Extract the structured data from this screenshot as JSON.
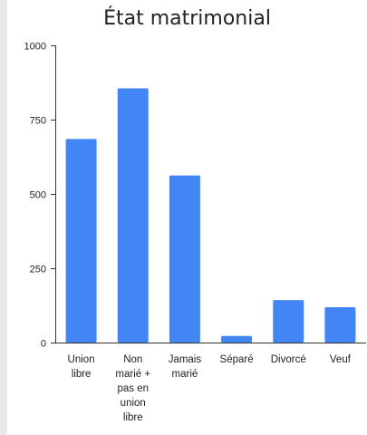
{
  "chart_data": {
    "type": "bar",
    "title": "État matrimonial",
    "xlabel": "",
    "ylabel": "",
    "categories": [
      [
        "Union",
        "libre"
      ],
      [
        "Non",
        "marié +",
        "pas en",
        "union",
        "libre"
      ],
      [
        "Jamais",
        "marié"
      ],
      [
        "Séparé"
      ],
      [
        "Divorcé"
      ],
      [
        "Veuf"
      ]
    ],
    "values": [
      685,
      855,
      562,
      22,
      143,
      119
    ],
    "ylim": [
      0,
      1000
    ],
    "yticks": [
      0,
      250,
      500,
      750,
      1000
    ],
    "grid": false,
    "legend": "none",
    "bar_color": "#4285f4"
  }
}
